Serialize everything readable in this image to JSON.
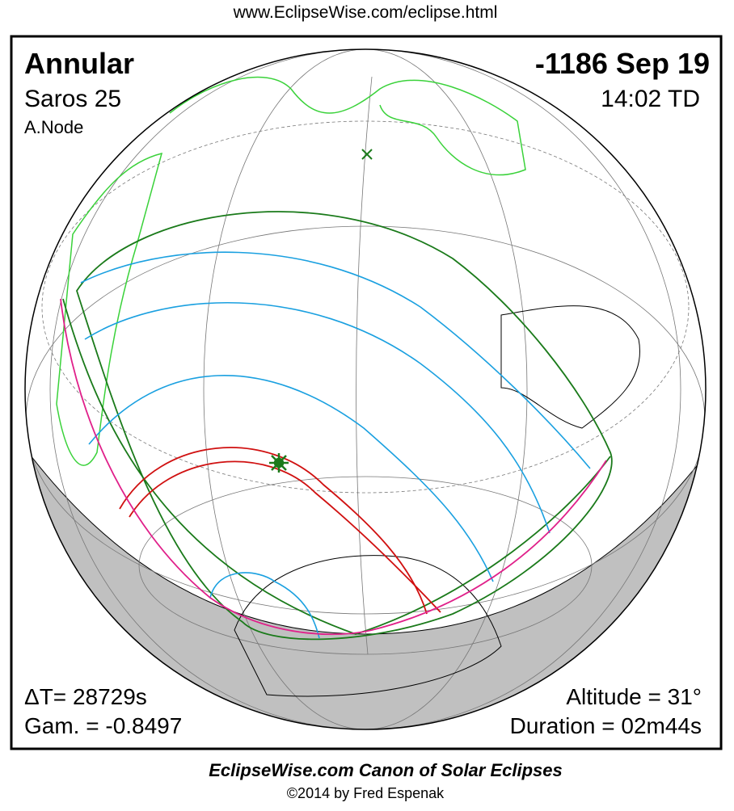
{
  "header": {
    "url": "www.EclipseWise.com/eclipse.html"
  },
  "left": {
    "type": "Annular",
    "saros": "Saros  25",
    "node": "A.Node"
  },
  "right": {
    "date": "-1186 Sep 19",
    "time": "14:02 TD"
  },
  "bottom_left": {
    "delta_t": "ΔT=  28729s",
    "gamma": "Gam. = -0.8497"
  },
  "bottom_right": {
    "altitude": "Altitude = 31°",
    "duration": "Duration = 02m44s"
  },
  "footer": {
    "title": "EclipseWise.com Canon of Solar Eclipses",
    "copyright": "©2014 by Fred Espenak"
  }
}
